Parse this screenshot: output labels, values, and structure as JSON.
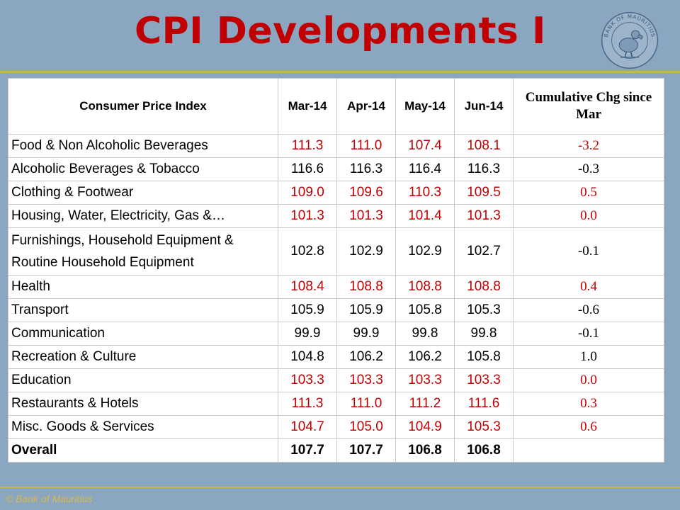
{
  "slide": {
    "title": "CPI Developments I",
    "footer": "© Bank of Mauritius"
  },
  "logo": {
    "name": "bank-of-mauritius-seal",
    "text": "BANK OF MAURITIUS"
  },
  "table": {
    "headers": [
      "Consumer Price Index",
      "Mar-14",
      "Apr-14",
      "May-14",
      "Jun-14",
      "Cumulative Chg since Mar"
    ],
    "rows": [
      {
        "category": "Food & Non Alcoholic Beverages",
        "values": [
          "111.3",
          "111.0",
          "107.4",
          "108.1"
        ],
        "change": "-3.2",
        "highlight": true
      },
      {
        "category": "Alcoholic Beverages & Tobacco",
        "values": [
          "116.6",
          "116.3",
          "116.4",
          "116.3"
        ],
        "change": "-0.3",
        "highlight": false
      },
      {
        "category": "Clothing & Footwear",
        "values": [
          "109.0",
          "109.6",
          "110.3",
          "109.5"
        ],
        "change": "0.5",
        "highlight": true
      },
      {
        "category": "Housing, Water, Electricity, Gas &…",
        "values": [
          "101.3",
          "101.3",
          "101.4",
          "101.3"
        ],
        "change": "0.0",
        "highlight": true
      },
      {
        "category": "Furnishings, Household Equipment & Routine Household Equipment",
        "values": [
          "102.8",
          "102.9",
          "102.9",
          "102.7"
        ],
        "change": "-0.1",
        "highlight": false
      },
      {
        "category": "Health",
        "values": [
          "108.4",
          "108.8",
          "108.8",
          "108.8"
        ],
        "change": "0.4",
        "highlight": true
      },
      {
        "category": "Transport",
        "values": [
          "105.9",
          "105.9",
          "105.8",
          "105.3"
        ],
        "change": "-0.6",
        "highlight": false
      },
      {
        "category": "Communication",
        "values": [
          "99.9",
          "99.9",
          "99.8",
          "99.8"
        ],
        "change": "-0.1",
        "highlight": false
      },
      {
        "category": "Recreation & Culture",
        "values": [
          "104.8",
          "106.2",
          "106.2",
          "105.8"
        ],
        "change": "1.0",
        "highlight": false
      },
      {
        "category": "Education",
        "values": [
          "103.3",
          "103.3",
          "103.3",
          "103.3"
        ],
        "change": "0.0",
        "highlight": true
      },
      {
        "category": "Restaurants & Hotels",
        "values": [
          "111.3",
          "111.0",
          "111.2",
          "111.6"
        ],
        "change": "0.3",
        "highlight": true
      },
      {
        "category": "Misc. Goods & Services",
        "values": [
          "104.7",
          "105.0",
          "104.9",
          "105.3"
        ],
        "change": "0.6",
        "highlight": true
      },
      {
        "category": "Overall",
        "values": [
          "107.7",
          "107.7",
          "106.8",
          "106.8"
        ],
        "change": "",
        "highlight": false,
        "overall": true
      }
    ]
  },
  "colors": {
    "background": "#8aa6c0",
    "title": "#c00000",
    "highlight_text": "#c00000",
    "rule": "#c8b64a",
    "footer": "#d9b84a"
  }
}
